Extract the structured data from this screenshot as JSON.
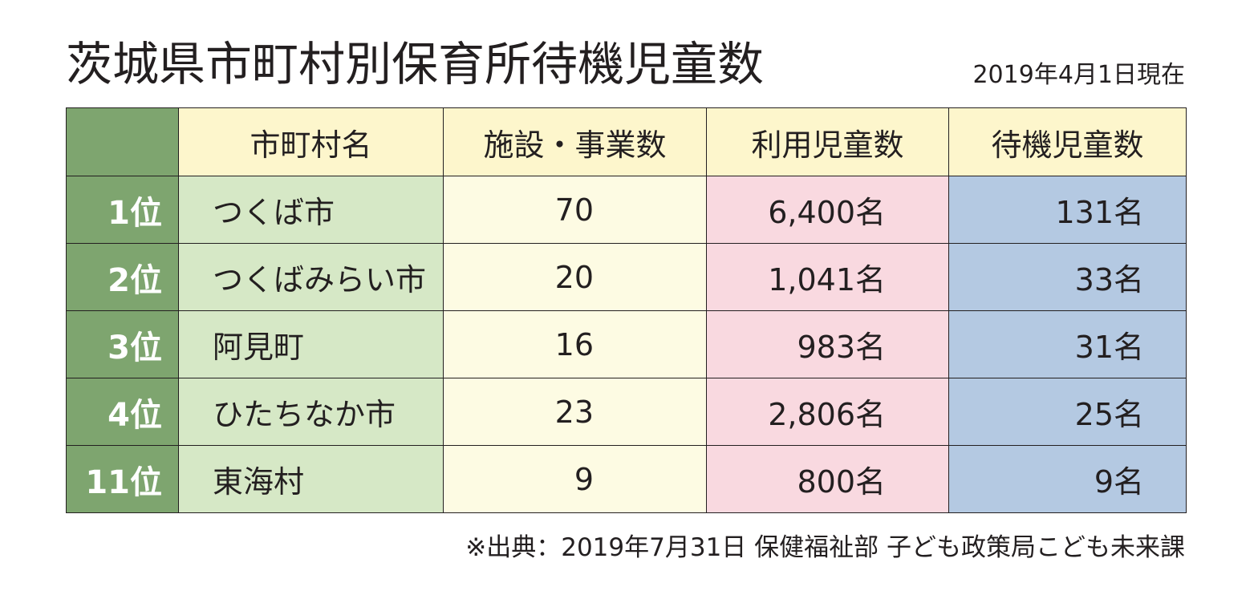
{
  "title": "茨城県市町村別保育所待機児童数",
  "date": "2019年4月1日現在",
  "table": {
    "headers": [
      "市町村名",
      "施設・事業数",
      "利用児童数",
      "待機児童数"
    ],
    "rows": [
      {
        "rank": "1位",
        "name": "つくば市",
        "facilities": "70",
        "users": "6,400名",
        "waiting": "131名"
      },
      {
        "rank": "2位",
        "name": "つくばみらい市",
        "facilities": "20",
        "users": "1,041名",
        "waiting": "33名"
      },
      {
        "rank": "3位",
        "name": "阿見町",
        "facilities": "16",
        "users": "983名",
        "waiting": "31名"
      },
      {
        "rank": "4位",
        "name": "ひたちなか市",
        "facilities": "23",
        "users": "2,806名",
        "waiting": "25名"
      },
      {
        "rank": "11位",
        "name": "東海村",
        "facilities": "9",
        "users": "800名",
        "waiting": "9名"
      }
    ]
  },
  "source": "※出典：2019年7月31日 保健福祉部 子ども政策局こども未来課",
  "colors": {
    "rank_bg": "#7ea56f",
    "name_bg": "#d6e8c6",
    "header_bg": "#fdf6cc",
    "facilities_bg": "#fdfbe3",
    "users_bg": "#f9d9e0",
    "waiting_bg": "#b4c9e2"
  }
}
